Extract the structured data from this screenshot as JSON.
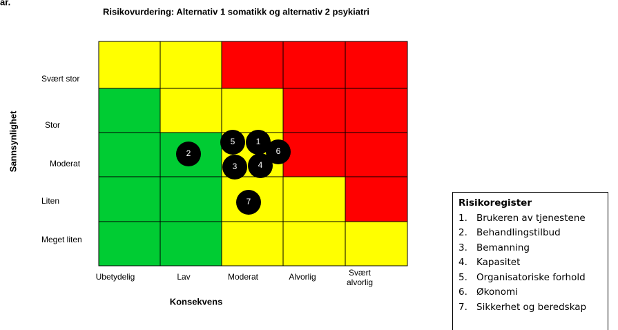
{
  "fragment": "ar.",
  "title": "Risikovurdering: Alternativ 1 somatikk og alternativ 2 psykiatri",
  "y_label": "Sannsynlighet",
  "x_label": "Konsekvens",
  "rows": [
    "Svært stor",
    "Stor",
    "Moderat",
    "Liten",
    "Meget liten"
  ],
  "columns": [
    "Ubetydelig",
    "Lav",
    "Moderat",
    "Alvorlig",
    "Svært alvorlig"
  ],
  "cells": [
    [
      "#ffff00",
      "#ffff00",
      "#ff0000",
      "#ff0000",
      "#ff0000"
    ],
    [
      "#00cc33",
      "#ffff00",
      "#ffff00",
      "#ff0000",
      "#ff0000"
    ],
    [
      "#00cc33",
      "#00cc33",
      "#ffff00",
      "#ff0000",
      "#ff0000"
    ],
    [
      "#00cc33",
      "#00cc33",
      "#ffff00",
      "#ffff00",
      "#ff0000"
    ],
    [
      "#00cc33",
      "#00cc33",
      "#ffff00",
      "#ffff00",
      "#ffff00"
    ]
  ],
  "markers": [
    "5",
    "1",
    "6",
    "2",
    "3",
    "4",
    "7"
  ],
  "register": {
    "title": "Risikoregister",
    "items": [
      {
        "num": "1.",
        "text": "Brukeren av tjenestene"
      },
      {
        "num": "2.",
        "text": "Behandlingstilbud"
      },
      {
        "num": "3.",
        "text": "Bemanning"
      },
      {
        "num": "4.",
        "text": "Kapasitet"
      },
      {
        "num": "5.",
        "text": "Organisatoriske forhold"
      },
      {
        "num": "6.",
        "text": "Økonomi"
      },
      {
        "num": "7.",
        "text": "Sikkerhet og beredskap"
      }
    ]
  }
}
